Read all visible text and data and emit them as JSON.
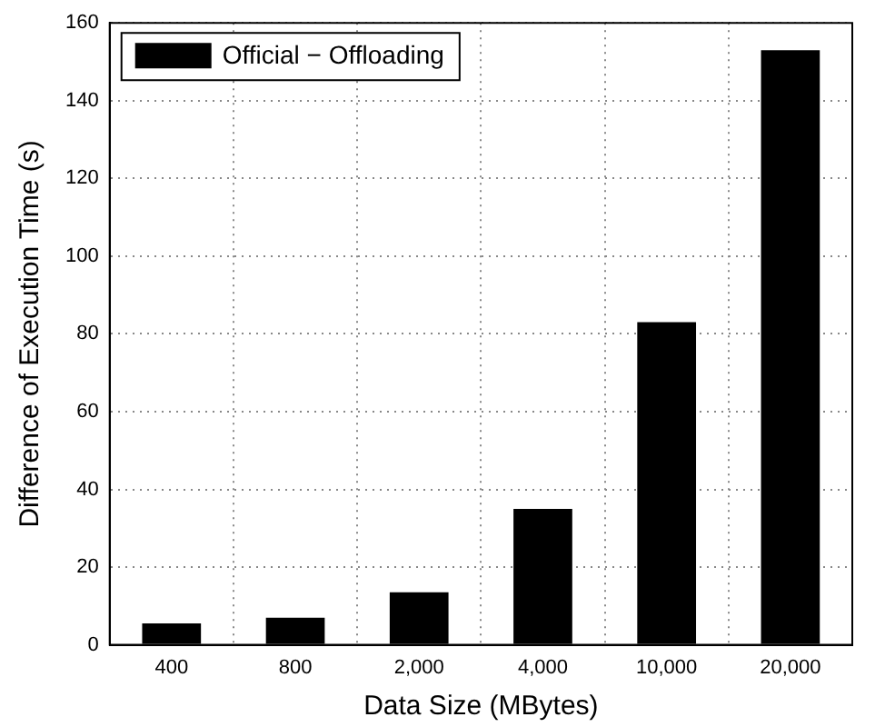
{
  "chart_data": {
    "type": "bar",
    "xlabel": "Data Size (MBytes)",
    "ylabel": "Difference of Execution Time (s)",
    "categories": [
      "400",
      "800",
      "2,000",
      "4,000",
      "10,000",
      "20,000"
    ],
    "series": [
      {
        "name": "Official − Offloading",
        "color": "#000000",
        "values": [
          5.5,
          7,
          13.5,
          35,
          83,
          153
        ]
      }
    ],
    "ylim": [
      0,
      160
    ],
    "yticks": [
      0,
      20,
      40,
      60,
      80,
      100,
      120,
      140,
      160
    ],
    "grid": true,
    "legend": "top left"
  }
}
